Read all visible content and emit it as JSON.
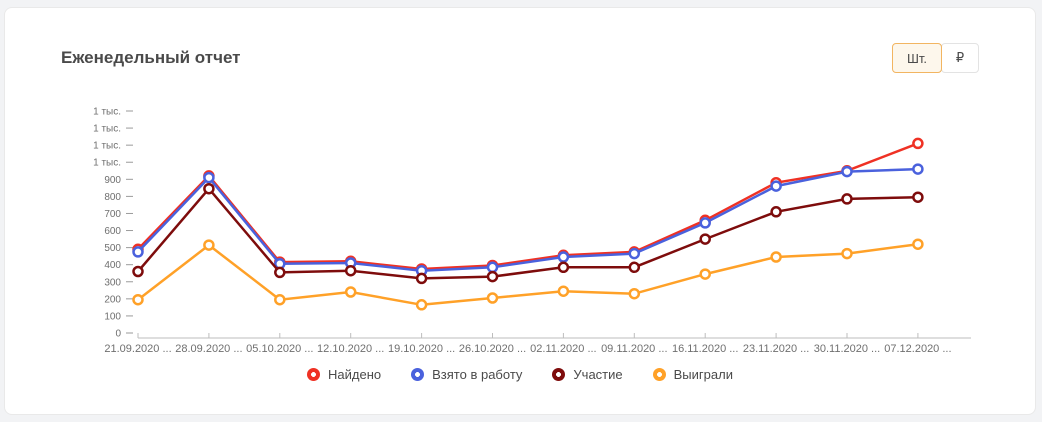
{
  "header": {
    "title": "Еженедельный отчет",
    "units": [
      {
        "label": "Шт.",
        "active": true
      },
      {
        "label": "₽",
        "active": false
      }
    ]
  },
  "colors": {
    "toggle_active_border": "#f2b561",
    "toggle_active_bg": "#fdf7ec",
    "axis_line": "#bdbdbd",
    "axis_tick_dash": "#9a9a9a",
    "axis_text": "#6f6f6f"
  },
  "chart_data": {
    "type": "line",
    "title": "Еженедельный отчет",
    "grid": false,
    "legend_position": "bottom",
    "x_labels": [
      "21.09.2020 ...",
      "28.09.2020 ...",
      "05.10.2020 ...",
      "12.10.2020 ...",
      "19.10.2020 ...",
      "26.10.2020 ...",
      "02.11.2020 ...",
      "09.11.2020 ...",
      "16.11.2020 ...",
      "23.11.2020 ...",
      "30.11.2020 ...",
      "07.12.2020 ..."
    ],
    "y_axis": {
      "min": 0,
      "max": 1300,
      "tick_step": 100,
      "tick_labels_bottom_to_top": [
        "0",
        "100",
        "200",
        "300",
        "400",
        "500",
        "600",
        "700",
        "800",
        "900",
        "1 тыс.",
        "1 тыс.",
        "1 тыс.",
        "1 тыс."
      ]
    },
    "series": [
      {
        "name": "Найдено",
        "color": "#ef3124",
        "values": [
          490,
          920,
          415,
          420,
          375,
          395,
          455,
          475,
          660,
          880,
          950,
          1110
        ]
      },
      {
        "name": "Взято в работу",
        "color": "#4a61dd",
        "values": [
          475,
          910,
          405,
          410,
          365,
          385,
          445,
          465,
          645,
          860,
          945,
          960
        ]
      },
      {
        "name": "Участие",
        "color": "#7e0c0c",
        "values": [
          360,
          845,
          355,
          365,
          320,
          330,
          385,
          385,
          550,
          710,
          785,
          795
        ]
      },
      {
        "name": "Выиграли",
        "color": "#ffa128",
        "values": [
          195,
          515,
          195,
          240,
          165,
          205,
          245,
          230,
          345,
          445,
          465,
          520
        ]
      }
    ]
  }
}
